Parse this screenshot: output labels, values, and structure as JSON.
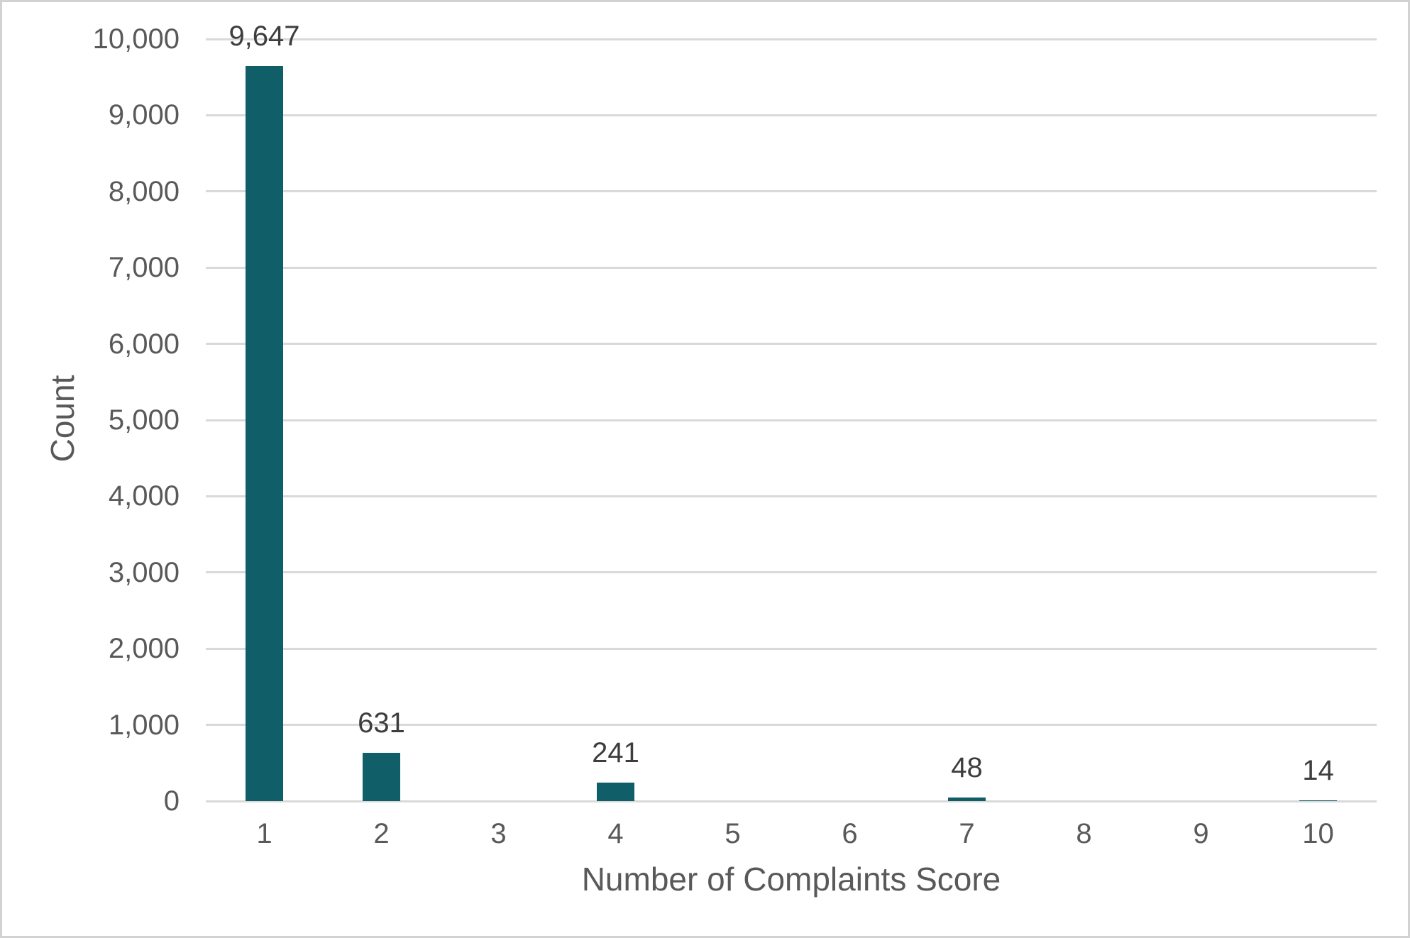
{
  "figure": {
    "background_color": "#ffffff",
    "border_color": "#d2d2d2"
  },
  "chart_data": {
    "type": "bar",
    "title": "",
    "categories": [
      "1",
      "2",
      "3",
      "4",
      "5",
      "6",
      "7",
      "8",
      "9",
      "10"
    ],
    "values": [
      9647,
      631,
      0,
      241,
      0,
      0,
      48,
      0,
      0,
      14
    ],
    "data_labels": [
      "9,647",
      "631",
      "",
      "241",
      "",
      "",
      "48",
      "",
      "",
      "14"
    ],
    "xlabel": "Number of Complaints Score",
    "ylabel": "Count",
    "ylim": [
      0,
      10000
    ],
    "ytick_step": 1000,
    "ytick_labels": [
      "0",
      "1,000",
      "2,000",
      "3,000",
      "4,000",
      "5,000",
      "6,000",
      "7,000",
      "8,000",
      "9,000",
      "10,000"
    ],
    "grid": true,
    "legend": false,
    "bar_color": "#105e68",
    "gridline_color": "#d9d9d9",
    "axis_text_color": "#595959",
    "data_label_color": "#3d3d3d"
  }
}
